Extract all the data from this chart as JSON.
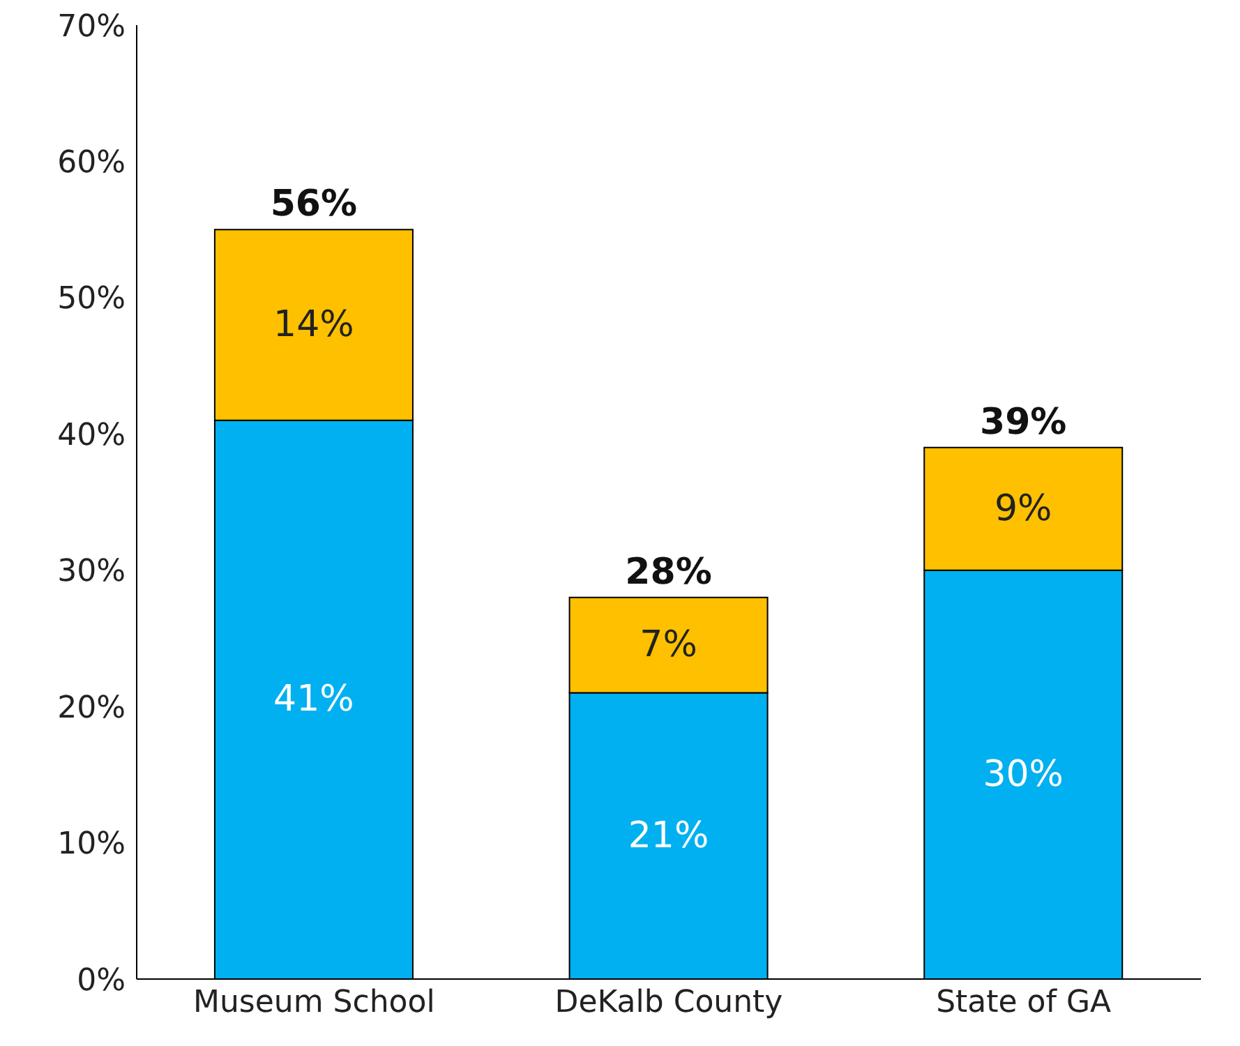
{
  "chart_data": {
    "type": "bar",
    "stacked": true,
    "categories": [
      "Museum School",
      "DeKalb County",
      "State of GA"
    ],
    "series": [
      {
        "color": "#00b0f0",
        "values": [
          41,
          21,
          30
        ],
        "value_labels": [
          "41%",
          "21%",
          "30%"
        ]
      },
      {
        "color": "#ffc000",
        "values": [
          14,
          7,
          9
        ],
        "value_labels": [
          "14%",
          "7%",
          "9%"
        ]
      }
    ],
    "totals": [
      "56%",
      "28%",
      "39%"
    ],
    "ylim": [
      0,
      70
    ],
    "yticks": [
      {
        "value": 0,
        "label": "0%"
      },
      {
        "value": 10,
        "label": "10%"
      },
      {
        "value": 20,
        "label": "20%"
      },
      {
        "value": 30,
        "label": "30%"
      },
      {
        "value": 40,
        "label": "40%"
      },
      {
        "value": 50,
        "label": "50%"
      },
      {
        "value": 60,
        "label": "60%"
      },
      {
        "value": 70,
        "label": "70%"
      }
    ],
    "grid": false,
    "legend": false
  }
}
